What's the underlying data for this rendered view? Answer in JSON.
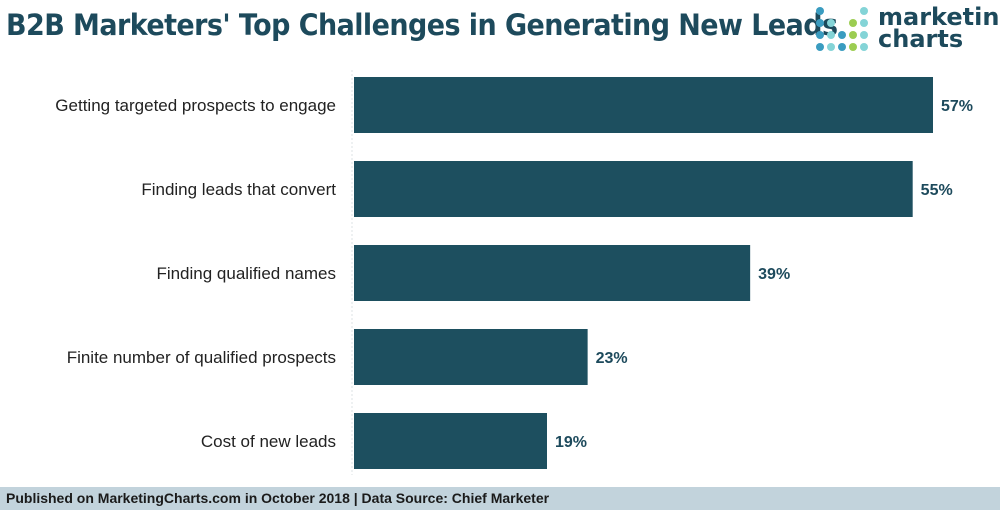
{
  "title": "B2B Marketers' Top Challenges in Generating New Leads",
  "logo": {
    "line1": "marketing",
    "line2": "charts",
    "colors": {
      "blue": "#3a9cc0",
      "teal": "#84d4d7",
      "green": "#9ccd52"
    }
  },
  "footer": "Published on MarketingCharts.com in October 2018 | Data Source: Chief Marketer",
  "chart_data": {
    "type": "bar",
    "orientation": "horizontal",
    "categories": [
      "Getting targeted prospects to engage",
      "Finding leads that convert",
      "Finding qualified names",
      "Finite number of qualified prospects",
      "Cost of new leads"
    ],
    "values": [
      57,
      55,
      39,
      23,
      19
    ],
    "labels": [
      "57%",
      "55%",
      "39%",
      "23%",
      "19%"
    ],
    "unit": "%",
    "xlim": [
      0,
      57
    ],
    "bar_color": "#1d4f5f",
    "grid": false
  }
}
